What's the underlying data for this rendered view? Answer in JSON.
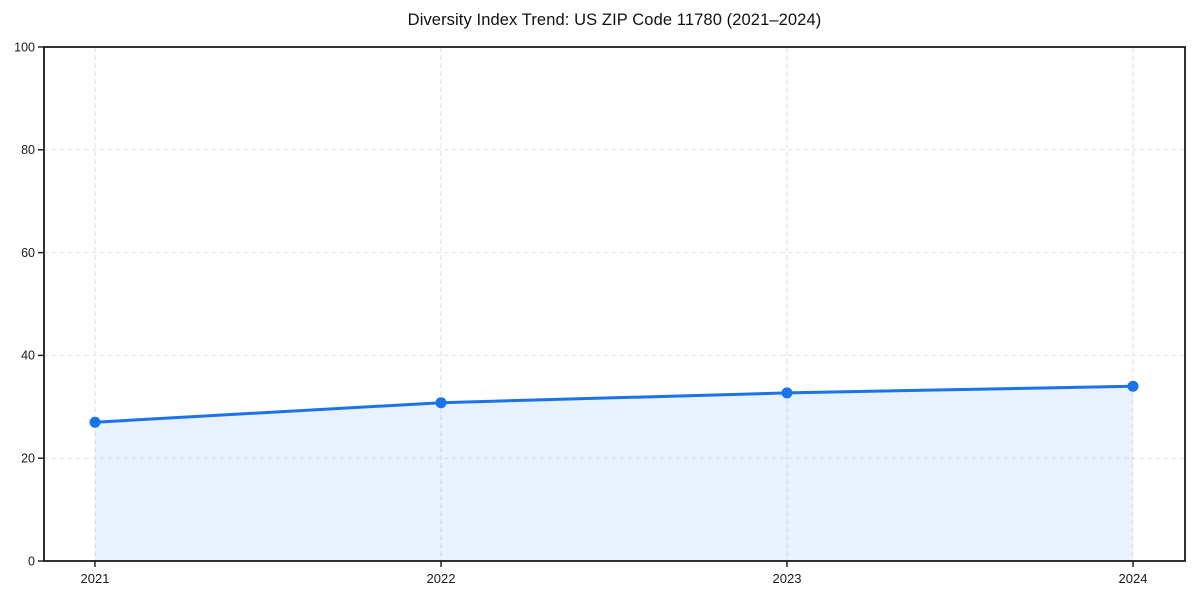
{
  "page": {
    "background": "#ffffff"
  },
  "chart_data": {
    "type": "area",
    "title": "Diversity Index Trend: US ZIP Code 11780 (2021–2024)",
    "categories": [
      "2021",
      "2022",
      "2023",
      "2024"
    ],
    "series": [
      {
        "name": "Diversity Index",
        "values": [
          27.0,
          30.8,
          32.7,
          34.0
        ]
      }
    ],
    "xlabel": "",
    "ylabel": "",
    "ylim": [
      0,
      100
    ],
    "yticks": [
      0,
      20,
      40,
      60,
      80,
      100
    ],
    "grid": true,
    "grid_style": "dashed",
    "legend": false,
    "markers": true,
    "colors": {
      "line": "#1a73e8",
      "marker": "#1a73e8",
      "fill": "rgba(26,115,232,0.10)",
      "grid": "#e2e2e2",
      "spine": "#1a1a1a",
      "text": "#1a1a1a",
      "background": "#ffffff"
    }
  }
}
